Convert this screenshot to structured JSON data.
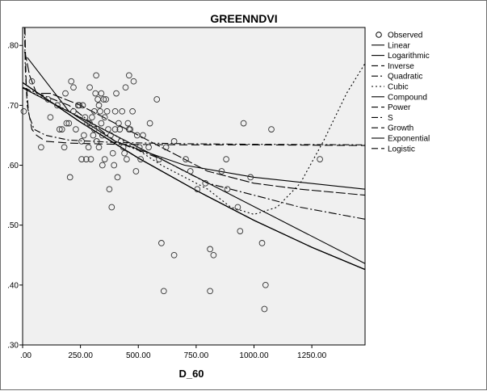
{
  "chart_data": {
    "type": "scatter",
    "title": "GREENNDVI",
    "xlabel": "D_60",
    "ylabel": "",
    "xlim": [
      0,
      1480
    ],
    "ylim": [
      0.3,
      0.83
    ],
    "x_ticks": [
      0,
      250,
      500,
      750,
      1000,
      1250
    ],
    "x_tick_labels": [
      ".00",
      "250.00",
      "500.00",
      "750.00",
      "1000.00",
      "1250.00"
    ],
    "y_ticks": [
      0.3,
      0.4,
      0.5,
      0.6,
      0.7,
      0.8
    ],
    "y_tick_labels": [
      ".30",
      ".40",
      ".50",
      ".60",
      ".70",
      ".80"
    ],
    "grid": false,
    "legend_position": "right",
    "observed": {
      "name": "Observed",
      "points": [
        [
          5,
          0.69
        ],
        [
          40,
          0.74
        ],
        [
          80,
          0.63
        ],
        [
          110,
          0.71
        ],
        [
          120,
          0.68
        ],
        [
          150,
          0.7
        ],
        [
          160,
          0.66
        ],
        [
          170,
          0.66
        ],
        [
          180,
          0.63
        ],
        [
          185,
          0.72
        ],
        [
          190,
          0.67
        ],
        [
          200,
          0.67
        ],
        [
          205,
          0.58
        ],
        [
          210,
          0.74
        ],
        [
          220,
          0.73
        ],
        [
          220,
          0.69
        ],
        [
          230,
          0.66
        ],
        [
          240,
          0.7
        ],
        [
          245,
          0.7
        ],
        [
          255,
          0.64
        ],
        [
          255,
          0.61
        ],
        [
          260,
          0.7
        ],
        [
          265,
          0.65
        ],
        [
          270,
          0.68
        ],
        [
          275,
          0.61
        ],
        [
          280,
          0.67
        ],
        [
          285,
          0.63
        ],
        [
          290,
          0.73
        ],
        [
          290,
          0.67
        ],
        [
          295,
          0.61
        ],
        [
          300,
          0.68
        ],
        [
          305,
          0.65
        ],
        [
          310,
          0.66
        ],
        [
          310,
          0.69
        ],
        [
          315,
          0.72
        ],
        [
          318,
          0.75
        ],
        [
          320,
          0.64
        ],
        [
          325,
          0.71
        ],
        [
          330,
          0.63
        ],
        [
          330,
          0.7
        ],
        [
          335,
          0.69
        ],
        [
          340,
          0.72
        ],
        [
          340,
          0.67
        ],
        [
          345,
          0.65
        ],
        [
          345,
          0.6
        ],
        [
          350,
          0.71
        ],
        [
          355,
          0.68
        ],
        [
          355,
          0.61
        ],
        [
          360,
          0.71
        ],
        [
          365,
          0.69
        ],
        [
          370,
          0.66
        ],
        [
          375,
          0.56
        ],
        [
          380,
          0.65
        ],
        [
          385,
          0.53
        ],
        [
          390,
          0.62
        ],
        [
          395,
          0.6
        ],
        [
          400,
          0.66
        ],
        [
          400,
          0.69
        ],
        [
          405,
          0.72
        ],
        [
          410,
          0.58
        ],
        [
          415,
          0.67
        ],
        [
          420,
          0.66
        ],
        [
          425,
          0.64
        ],
        [
          430,
          0.69
        ],
        [
          435,
          0.63
        ],
        [
          440,
          0.62
        ],
        [
          445,
          0.73
        ],
        [
          450,
          0.61
        ],
        [
          455,
          0.67
        ],
        [
          460,
          0.66
        ],
        [
          460,
          0.75
        ],
        [
          465,
          0.66
        ],
        [
          475,
          0.69
        ],
        [
          480,
          0.74
        ],
        [
          490,
          0.59
        ],
        [
          495,
          0.65
        ],
        [
          505,
          0.63
        ],
        [
          510,
          0.61
        ],
        [
          520,
          0.65
        ],
        [
          545,
          0.63
        ],
        [
          550,
          0.67
        ],
        [
          580,
          0.71
        ],
        [
          590,
          0.61
        ],
        [
          600,
          0.47
        ],
        [
          610,
          0.39
        ],
        [
          620,
          0.63
        ],
        [
          655,
          0.45
        ],
        [
          655,
          0.64
        ],
        [
          705,
          0.61
        ],
        [
          725,
          0.59
        ],
        [
          755,
          0.56
        ],
        [
          790,
          0.57
        ],
        [
          810,
          0.46
        ],
        [
          810,
          0.39
        ],
        [
          825,
          0.45
        ],
        [
          860,
          0.59
        ],
        [
          880,
          0.61
        ],
        [
          885,
          0.56
        ],
        [
          930,
          0.53
        ],
        [
          940,
          0.49
        ],
        [
          955,
          0.67
        ],
        [
          985,
          0.58
        ],
        [
          1035,
          0.47
        ],
        [
          1045,
          0.36
        ],
        [
          1050,
          0.4
        ],
        [
          1075,
          0.66
        ],
        [
          1285,
          0.61
        ]
      ]
    },
    "series": [
      {
        "name": "Linear",
        "dash": "",
        "x": [
          0,
          1480
        ],
        "y": [
          0.729,
          0.436
        ]
      },
      {
        "name": "Logarithmic",
        "dash": "12 3",
        "x": [
          8,
          15,
          30,
          60,
          120,
          250,
          400,
          600,
          800,
          1000,
          1200,
          1480
        ],
        "y": [
          0.79,
          0.78,
          0.75,
          0.72,
          0.72,
          0.7,
          0.67,
          0.63,
          0.59,
          0.57,
          0.56,
          0.55
        ]
      },
      {
        "name": "Inverse",
        "dash": "10 5",
        "x": [
          10,
          15,
          25,
          40,
          60,
          100,
          200,
          400,
          700,
          1000,
          1480
        ],
        "y": [
          0.83,
          0.74,
          0.69,
          0.66,
          0.65,
          0.64,
          0.637,
          0.635,
          0.634,
          0.634,
          0.633
        ]
      },
      {
        "name": "Quadratic",
        "dash": "10 3 2 3",
        "x": [
          0,
          200,
          400,
          600,
          800,
          1000,
          1200,
          1480
        ],
        "y": [
          0.73,
          0.7,
          0.64,
          0.61,
          0.57,
          0.55,
          0.53,
          0.51
        ]
      },
      {
        "name": "Cubic",
        "dash": "2 3",
        "x": [
          0,
          200,
          400,
          600,
          800,
          900,
          1000,
          1100,
          1200,
          1300,
          1400,
          1480
        ],
        "y": [
          0.73,
          0.69,
          0.65,
          0.6,
          0.56,
          0.53,
          0.518,
          0.53,
          0.57,
          0.64,
          0.72,
          0.77
        ]
      },
      {
        "name": "Compound",
        "dash": "",
        "x": [
          0,
          250,
          500,
          750,
          1000,
          1250,
          1480
        ],
        "y": [
          0.738,
          0.672,
          0.612,
          0.558,
          0.508,
          0.463,
          0.426
        ]
      },
      {
        "name": "Power",
        "dash": "",
        "x": [
          20,
          200,
          400,
          700,
          1000,
          1480
        ],
        "y": [
          0.78,
          0.69,
          0.64,
          0.6,
          0.58,
          0.56
        ]
      },
      {
        "name": "S",
        "dash": "8 3 2 3",
        "x": [
          8,
          12,
          20,
          30,
          50,
          100,
          200,
          400,
          700,
          1000,
          1480
        ],
        "y": [
          0.83,
          0.76,
          0.7,
          0.68,
          0.66,
          0.65,
          0.642,
          0.638,
          0.636,
          0.635,
          0.634
        ]
      },
      {
        "name": "Growth",
        "dash": "",
        "x": [
          0,
          250,
          500,
          750,
          1000,
          1250,
          1480
        ],
        "y": [
          0.738,
          0.672,
          0.612,
          0.558,
          0.508,
          0.463,
          0.426
        ]
      },
      {
        "name": "Exponential",
        "dash": "",
        "x": [
          0,
          250,
          500,
          750,
          1000,
          1250,
          1480
        ],
        "y": [
          0.738,
          0.672,
          0.612,
          0.558,
          0.508,
          0.463,
          0.426
        ]
      },
      {
        "name": "Logistic",
        "dash": "",
        "x": [
          0,
          250,
          500,
          750,
          1000,
          1250,
          1480
        ],
        "y": [
          0.738,
          0.672,
          0.612,
          0.558,
          0.508,
          0.463,
          0.426
        ]
      }
    ],
    "legend": [
      {
        "name": "Observed",
        "style": "marker"
      },
      {
        "name": "Linear",
        "dash": ""
      },
      {
        "name": "Logarithmic",
        "dash": ""
      },
      {
        "name": "Inverse",
        "dash": "8 4"
      },
      {
        "name": "Quadratic",
        "dash": "8 3 2 3"
      },
      {
        "name": "Cubic",
        "dash": "2 3"
      },
      {
        "name": "Compound",
        "dash": ""
      },
      {
        "name": "Power",
        "dash": "8 4"
      },
      {
        "name": "S",
        "dash": "8 3 2 3"
      },
      {
        "name": "Growth",
        "dash": "8 4"
      },
      {
        "name": "Exponential",
        "dash": ""
      },
      {
        "name": "Logistic",
        "dash": "8 4"
      }
    ],
    "colors": {
      "plot_bg": "#f0f0f0",
      "line": "#000000",
      "marker": "#333333"
    }
  }
}
